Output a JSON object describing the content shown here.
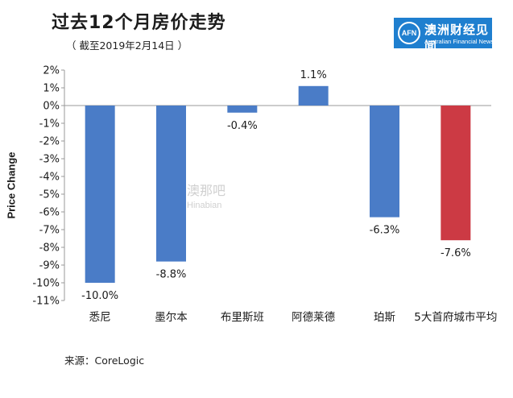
{
  "header": {
    "title": "过去12个月房价走势",
    "subtitle": "（ 截至2019年2月14日 ）"
  },
  "logo": {
    "mark": "AFN",
    "name_cn": "澳洲财经见闻",
    "name_en": "Australian Financial News",
    "color": "#1f7fcf"
  },
  "watermark": {
    "cn": "澳那吧",
    "en": "Hinabian"
  },
  "source": "来源：CoreLogic",
  "chart_data": {
    "type": "bar",
    "title": "过去12个月房价走势",
    "ylabel": "Price Change",
    "xlabel": "",
    "ylim": [
      -11,
      2
    ],
    "yticks": [
      2,
      1,
      0,
      -1,
      -2,
      -3,
      -4,
      -5,
      -6,
      -7,
      -8,
      -9,
      -10,
      -11
    ],
    "ytick_labels": [
      "2%",
      "1%",
      "0%",
      "-1%",
      "-2%",
      "-3%",
      "-4%",
      "-5%",
      "-6%",
      "-7%",
      "-8%",
      "-9%",
      "-10%",
      "-11%"
    ],
    "categories": [
      "悉尼",
      "墨尔本",
      "布里斯班",
      "阿德莱德",
      "珀斯",
      "5大首府城市平均"
    ],
    "values": [
      -10.0,
      -8.8,
      -0.4,
      1.1,
      -6.3,
      -7.6
    ],
    "data_labels": [
      "-10.0%",
      "-8.8%",
      "-0.4%",
      "1.1%",
      "-6.3%",
      "-7.6%"
    ],
    "colors": [
      "#4a7cc7",
      "#4a7cc7",
      "#4a7cc7",
      "#4a7cc7",
      "#4a7cc7",
      "#cc3a44"
    ],
    "grid": false
  }
}
